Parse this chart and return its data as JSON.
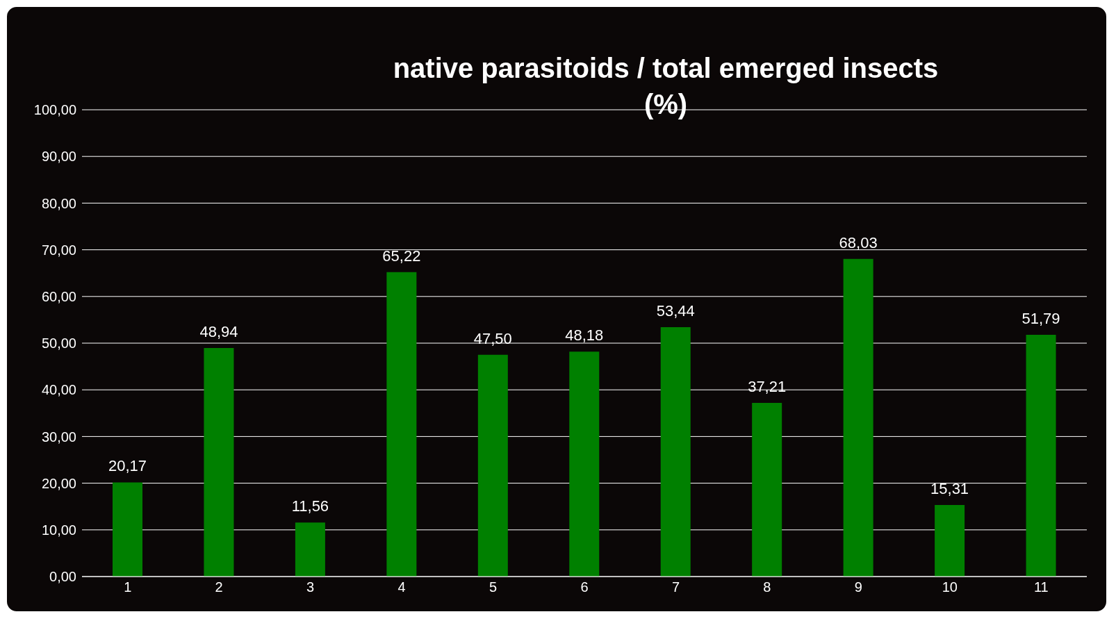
{
  "chart_data": {
    "type": "bar",
    "title": "native parasitoids / total emerged insects\n(%)",
    "categories": [
      "1",
      "2",
      "3",
      "4",
      "5",
      "6",
      "7",
      "8",
      "9",
      "10",
      "11"
    ],
    "values": [
      20.17,
      48.94,
      11.56,
      65.22,
      47.5,
      48.18,
      53.44,
      37.21,
      68.03,
      15.31,
      51.79
    ],
    "value_labels": [
      "20,17",
      "48,94",
      "11,56",
      "65,22",
      "47,50",
      "48,18",
      "53,44",
      "37,21",
      "68,03",
      "15,31",
      "51,79"
    ],
    "color": "#008000",
    "ylim": [
      0,
      100
    ],
    "yticks": [
      {
        "value": 0,
        "label": "0,00"
      },
      {
        "value": 10,
        "label": "10,00"
      },
      {
        "value": 20,
        "label": "20,00"
      },
      {
        "value": 30,
        "label": "30,00"
      },
      {
        "value": 40,
        "label": "40,00"
      },
      {
        "value": 50,
        "label": "50,00"
      },
      {
        "value": 60,
        "label": "60,00"
      },
      {
        "value": 70,
        "label": "70,00"
      },
      {
        "value": 80,
        "label": "80,00"
      },
      {
        "value": 90,
        "label": "90,00"
      },
      {
        "value": 100,
        "label": "100,00"
      }
    ],
    "grid": "y",
    "legend": false
  }
}
